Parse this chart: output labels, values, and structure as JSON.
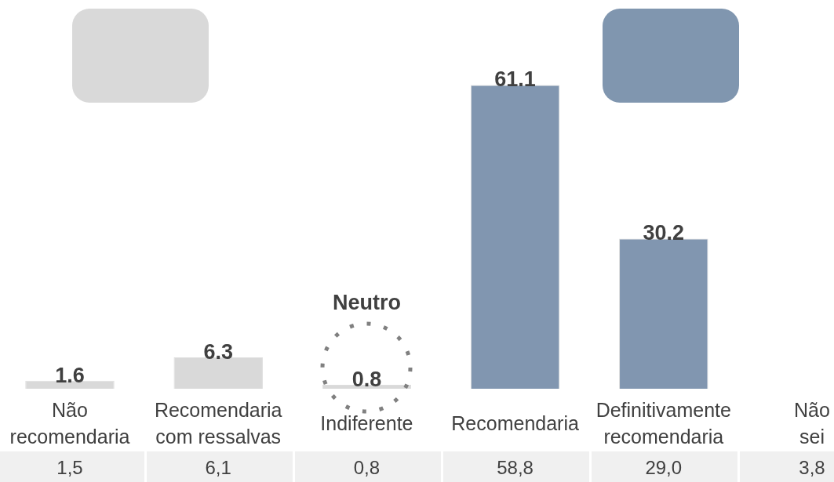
{
  "chart_data": [
    {
      "type": "bar",
      "categories": [
        "Não recomendaria",
        "Recomendaria com ressalvas",
        "Indiferente",
        "Recomendaria",
        "Definitivamente recomendaria",
        "Não sei"
      ],
      "series": [
        {
          "values": [
            1.6,
            6.3,
            0.8,
            61.1,
            30.2,
            null
          ],
          "colors": [
            "#d9d9d9",
            "#d9d9d9",
            "#d9d9d9",
            "#8196b0",
            "#8196b0",
            "#8196b0"
          ],
          "value_labels": [
            "1.6",
            "6.3",
            "0.8",
            "61.1",
            "30.2",
            null
          ]
        }
      ],
      "tick_labels": "x",
      "annotations": [
        "Neutro"
      ]
    },
    {
      "type": "other",
      "annotations": [
        "1,5",
        "6,1",
        "0,8",
        "58,8",
        "29,0",
        "3,8"
      ]
    }
  ]
}
